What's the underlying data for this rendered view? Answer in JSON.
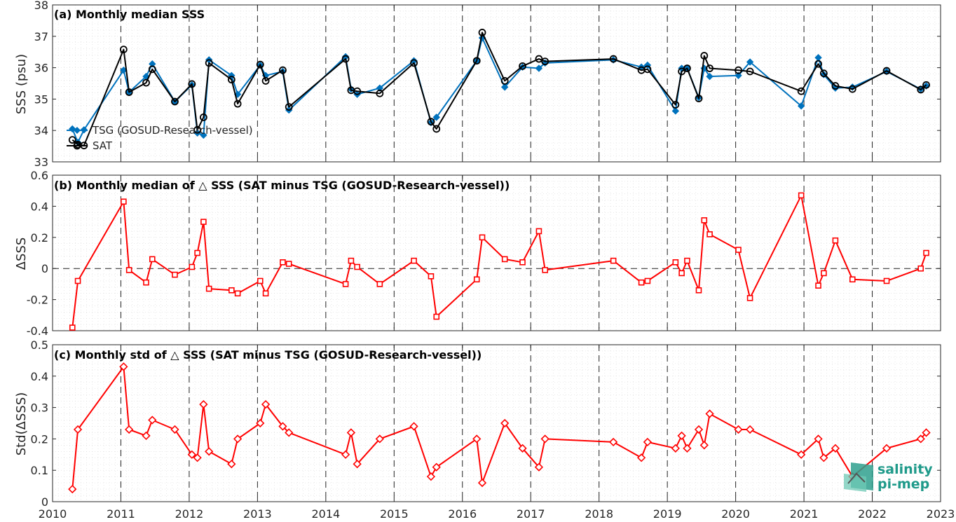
{
  "chart_data": [
    {
      "type": "line",
      "title": "(a) Monthly median SSS",
      "xlabel": "",
      "ylabel": "SSS (psu)",
      "xlim": [
        2010,
        2023
      ],
      "ylim": [
        33,
        38
      ],
      "yticks": [
        "33",
        "34",
        "35",
        "36",
        "37",
        "38"
      ],
      "grid": true,
      "legend_position": "bottom-left",
      "series": [
        {
          "name": "TSG (GOSUD-Research-vessel)",
          "color": "#0072BD",
          "marker": "diamond",
          "x": [
            2010.29,
            2010.37,
            2010.46,
            2011.04,
            2011.12,
            2011.37,
            2011.46,
            2011.79,
            2012.04,
            2012.12,
            2012.21,
            2012.29,
            2012.62,
            2012.71,
            2013.04,
            2013.12,
            2013.37,
            2013.46,
            2014.29,
            2014.37,
            2014.46,
            2014.79,
            2015.29,
            2015.54,
            2015.62,
            2016.21,
            2016.29,
            2016.62,
            2016.88,
            2017.12,
            2017.21,
            2018.21,
            2018.62,
            2018.71,
            2019.12,
            2019.21,
            2019.29,
            2019.46,
            2019.54,
            2019.62,
            2020.04,
            2020.21,
            2020.96,
            2021.21,
            2021.29,
            2021.46,
            2021.71,
            2022.21,
            2022.71,
            2022.79
          ],
          "y": [
            34.05,
            33.62,
            34.02,
            35.92,
            35.22,
            35.72,
            36.12,
            34.92,
            35.45,
            33.92,
            33.85,
            36.25,
            35.75,
            35.15,
            36.08,
            35.75,
            35.88,
            34.65,
            36.35,
            35.32,
            35.15,
            35.35,
            36.22,
            34.25,
            34.42,
            36.22,
            36.95,
            35.38,
            36.02,
            35.98,
            36.15,
            36.25,
            36.02,
            36.08,
            34.62,
            35.98,
            35.98,
            35.05,
            35.98,
            35.72,
            35.75,
            36.18,
            34.78,
            36.32,
            35.78,
            35.35,
            35.38,
            35.88,
            35.32,
            35.42
          ]
        },
        {
          "name": "SAT",
          "color": "#000000",
          "marker": "circle",
          "x": [
            2010.29,
            2010.37,
            2010.46,
            2011.04,
            2011.12,
            2011.37,
            2011.46,
            2011.79,
            2012.04,
            2012.12,
            2012.21,
            2012.29,
            2012.62,
            2012.71,
            2013.04,
            2013.12,
            2013.37,
            2013.46,
            2014.29,
            2014.37,
            2014.46,
            2014.79,
            2015.29,
            2015.54,
            2015.62,
            2016.21,
            2016.29,
            2016.62,
            2016.88,
            2017.12,
            2017.21,
            2018.21,
            2018.62,
            2018.71,
            2019.12,
            2019.21,
            2019.29,
            2019.46,
            2019.54,
            2019.62,
            2020.04,
            2020.21,
            2020.96,
            2021.21,
            2021.29,
            2021.46,
            2021.71,
            2022.21,
            2022.71,
            2022.79
          ],
          "y": [
            33.7,
            33.55,
            33.52,
            36.58,
            35.22,
            35.52,
            35.95,
            34.92,
            35.48,
            34.02,
            34.42,
            36.15,
            35.62,
            34.85,
            36.1,
            35.58,
            35.92,
            34.75,
            36.28,
            35.28,
            35.25,
            35.18,
            36.15,
            34.28,
            34.05,
            36.22,
            37.12,
            35.58,
            36.05,
            36.28,
            36.2,
            36.28,
            35.92,
            35.95,
            34.82,
            35.88,
            35.98,
            35.02,
            36.38,
            35.98,
            35.92,
            35.88,
            35.25,
            36.12,
            35.82,
            35.42,
            35.32,
            35.9,
            35.3,
            35.45
          ]
        }
      ]
    },
    {
      "type": "line",
      "title": "(b) Monthly median of △ SSS (SAT minus TSG (GOSUD-Research-vessel))",
      "xlabel": "",
      "ylabel": "ΔSSS",
      "xlim": [
        2010,
        2023
      ],
      "ylim": [
        -0.4,
        0.6
      ],
      "yticks": [
        "-0.4",
        "-0.2",
        "0",
        "0.2",
        "0.4",
        "0.6"
      ],
      "grid": true,
      "series": [
        {
          "color": "#FF0000",
          "marker": "square",
          "x": [
            2010.29,
            2010.37,
            2011.04,
            2011.12,
            2011.37,
            2011.46,
            2011.79,
            2012.04,
            2012.12,
            2012.21,
            2012.29,
            2012.62,
            2012.71,
            2013.04,
            2013.12,
            2013.37,
            2013.46,
            2014.29,
            2014.37,
            2014.46,
            2014.79,
            2015.29,
            2015.54,
            2015.62,
            2016.21,
            2016.29,
            2016.62,
            2016.88,
            2017.12,
            2017.21,
            2018.21,
            2018.62,
            2018.71,
            2019.12,
            2019.21,
            2019.29,
            2019.46,
            2019.54,
            2019.62,
            2020.04,
            2020.21,
            2020.96,
            2021.21,
            2021.29,
            2021.46,
            2021.71,
            2022.21,
            2022.71,
            2022.79
          ],
          "y": [
            -0.38,
            -0.08,
            0.43,
            -0.01,
            -0.09,
            0.06,
            -0.04,
            0.01,
            0.1,
            0.3,
            -0.13,
            -0.14,
            -0.16,
            -0.08,
            -0.16,
            0.04,
            0.03,
            -0.1,
            0.05,
            0.01,
            -0.1,
            0.05,
            -0.05,
            -0.31,
            -0.07,
            0.2,
            0.06,
            0.04,
            0.24,
            -0.01,
            0.05,
            -0.09,
            -0.08,
            0.04,
            -0.03,
            0.05,
            -0.14,
            0.31,
            0.22,
            0.12,
            -0.19,
            0.47,
            -0.11,
            -0.03,
            0.18,
            -0.07,
            -0.08,
            0.0,
            0.1
          ]
        }
      ]
    },
    {
      "type": "line",
      "title": "(c) Monthly std of △ SSS (SAT minus TSG (GOSUD-Research-vessel))",
      "xlabel": "",
      "ylabel": "Std(ΔSSS)",
      "xlim": [
        2010,
        2023
      ],
      "ylim": [
        0,
        0.5
      ],
      "yticks": [
        "0",
        "0.1",
        "0.2",
        "0.3",
        "0.4",
        "0.5"
      ],
      "xticks": [
        "2010",
        "2011",
        "2012",
        "2013",
        "2014",
        "2015",
        "2016",
        "2017",
        "2018",
        "2019",
        "2020",
        "2021",
        "2022",
        "2023"
      ],
      "grid": true,
      "series": [
        {
          "color": "#FF0000",
          "marker": "diamond",
          "x": [
            2010.29,
            2010.37,
            2011.04,
            2011.12,
            2011.37,
            2011.46,
            2011.79,
            2012.04,
            2012.12,
            2012.21,
            2012.29,
            2012.62,
            2012.71,
            2013.04,
            2013.12,
            2013.37,
            2013.46,
            2014.29,
            2014.37,
            2014.46,
            2014.79,
            2015.29,
            2015.54,
            2015.62,
            2016.21,
            2016.29,
            2016.62,
            2016.88,
            2017.12,
            2017.21,
            2018.21,
            2018.62,
            2018.71,
            2019.12,
            2019.21,
            2019.29,
            2019.46,
            2019.54,
            2019.62,
            2020.04,
            2020.21,
            2020.96,
            2021.21,
            2021.29,
            2021.46,
            2021.71,
            2022.21,
            2022.71,
            2022.79
          ],
          "y": [
            0.04,
            0.23,
            0.43,
            0.23,
            0.21,
            0.26,
            0.23,
            0.15,
            0.14,
            0.31,
            0.16,
            0.12,
            0.2,
            0.25,
            0.31,
            0.24,
            0.22,
            0.15,
            0.22,
            0.12,
            0.2,
            0.24,
            0.08,
            0.11,
            0.2,
            0.06,
            0.25,
            0.17,
            0.11,
            0.2,
            0.19,
            0.14,
            0.19,
            0.17,
            0.21,
            0.17,
            0.23,
            0.18,
            0.28,
            0.23,
            0.23,
            0.15,
            0.2,
            0.14,
            0.17,
            0.08,
            0.17,
            0.2,
            0.22
          ]
        }
      ]
    }
  ],
  "logo": {
    "line1": "salinity",
    "line2": "pi-mep"
  }
}
